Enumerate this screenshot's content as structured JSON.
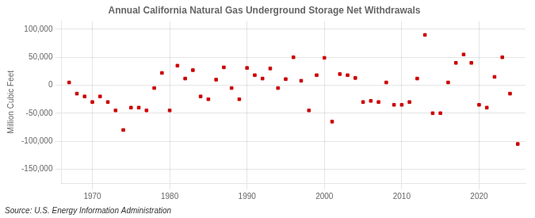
{
  "chart_data": {
    "type": "scatter",
    "title": "Annual California Natural Gas Underground Storage Net Withdrawals",
    "ylabel": "Million Cubic Feet",
    "annotations": [
      "Source: U.S. Energy Information Administration"
    ],
    "color": "#cc0000",
    "marker": "square",
    "grid": true,
    "xlim": [
      1966,
      2026
    ],
    "xticks": [
      1970,
      1980,
      1990,
      2000,
      2010,
      2020
    ],
    "ylim": [
      -175000,
      115000
    ],
    "yticks": [
      {
        "value": -150000,
        "label": "-150,000"
      },
      {
        "value": -100000,
        "label": "-100,000"
      },
      {
        "value": -50000,
        "label": "-50,000"
      },
      0,
      {
        "value": 50000,
        "label": "50,000"
      },
      {
        "value": 100000,
        "label": "100,000"
      }
    ],
    "x": [
      1967,
      1968,
      1969,
      1970,
      1971,
      1972,
      1973,
      1974,
      1975,
      1976,
      1977,
      1978,
      1979,
      1980,
      1981,
      1982,
      1983,
      1984,
      1985,
      1986,
      1987,
      1988,
      1989,
      1990,
      1991,
      1992,
      1993,
      1994,
      1995,
      1996,
      1997,
      1998,
      1999,
      2000,
      2001,
      2002,
      2003,
      2004,
      2005,
      2006,
      2007,
      2008,
      2009,
      2010,
      2011,
      2012,
      2013,
      2014,
      2015,
      2016,
      2017,
      2018,
      2019,
      2020,
      2021,
      2022,
      2023,
      2024,
      2025
    ],
    "values": [
      5000,
      -15000,
      -20000,
      -30000,
      -20000,
      -30000,
      -45000,
      -80000,
      -40000,
      -40000,
      -45000,
      -5000,
      22000,
      -45000,
      35000,
      12000,
      27000,
      -20000,
      -25000,
      10000,
      32000,
      -5000,
      -25000,
      31000,
      18000,
      12000,
      30000,
      -5000,
      11000,
      50000,
      8000,
      -45000,
      18000,
      49000,
      -65000,
      20000,
      18000,
      13000,
      -30000,
      -28000,
      -30000,
      5000,
      -35000,
      -35000,
      -30000,
      12000,
      90000,
      -50000,
      -50000,
      5000,
      40000,
      55000,
      40000,
      -35000,
      -40000,
      15000,
      50000,
      -15000,
      -105000
    ]
  }
}
